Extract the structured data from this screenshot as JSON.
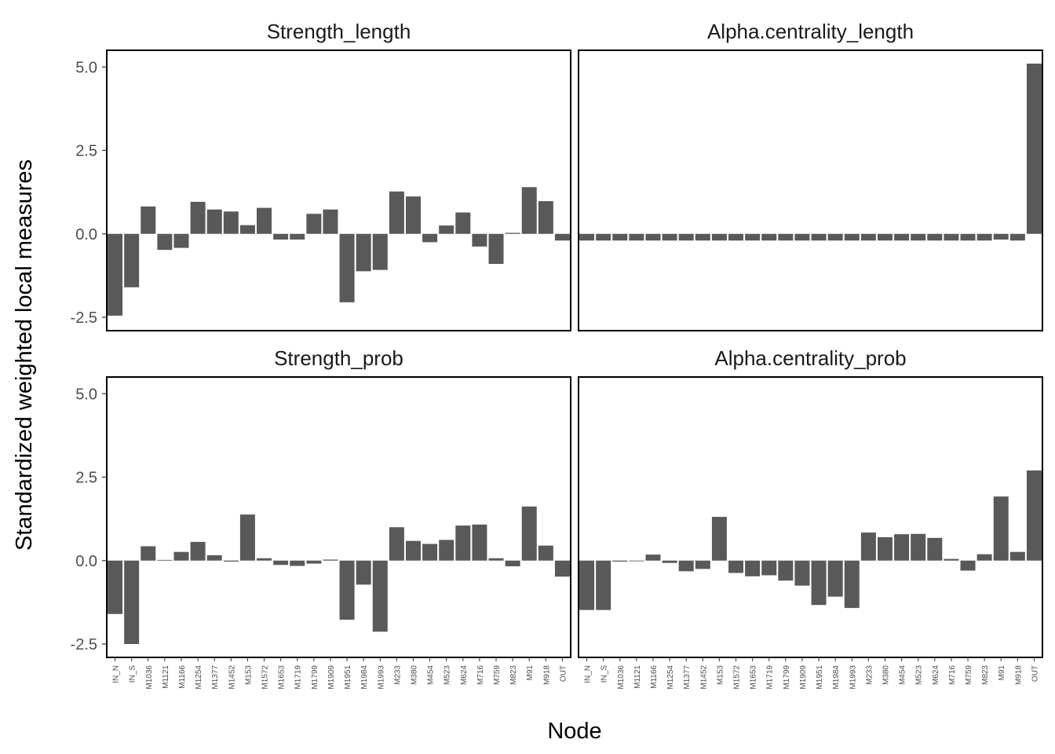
{
  "chart_data": {
    "type": "bar",
    "xlabel": "Node",
    "ylabel": "Standardized weighted local measures",
    "ylim": [
      -2.9,
      5.5
    ],
    "yticks": [
      -2.5,
      0.0,
      2.5,
      5.0
    ],
    "ytick_labels": [
      "-2.5",
      "0.0",
      "2.5",
      "5.0"
    ],
    "grid": false,
    "bar_color": "#595959",
    "categories": [
      "IN_N",
      "IN_S",
      "M1036",
      "M1121",
      "M1166",
      "M1254",
      "M1377",
      "M1452",
      "M153",
      "M1572",
      "M1653",
      "M1719",
      "M1799",
      "M1909",
      "M1951",
      "M1984",
      "M1993",
      "M233",
      "M380",
      "M454",
      "M523",
      "M624",
      "M716",
      "M759",
      "M823",
      "M91",
      "M918",
      "OUT"
    ],
    "series": [
      {
        "name": "Strength_length",
        "values": [
          -2.45,
          -1.6,
          0.82,
          -0.48,
          -0.42,
          0.96,
          0.73,
          0.67,
          0.26,
          0.78,
          -0.17,
          -0.17,
          0.6,
          0.73,
          -2.05,
          -1.12,
          -1.08,
          1.27,
          1.12,
          -0.25,
          0.25,
          0.64,
          -0.38,
          -0.9,
          0.03,
          1.4,
          0.98,
          -0.2
        ]
      },
      {
        "name": "Alpha.centrality_length",
        "values": [
          -0.2,
          -0.2,
          -0.2,
          -0.2,
          -0.2,
          -0.2,
          -0.2,
          -0.2,
          -0.2,
          -0.2,
          -0.2,
          -0.2,
          -0.2,
          -0.2,
          -0.2,
          -0.2,
          -0.2,
          -0.2,
          -0.2,
          -0.2,
          -0.2,
          -0.2,
          -0.2,
          -0.2,
          -0.2,
          -0.17,
          -0.2,
          5.1
        ]
      },
      {
        "name": "Strength_prob",
        "values": [
          -1.6,
          -2.5,
          0.43,
          0.02,
          0.26,
          0.56,
          0.16,
          -0.03,
          1.38,
          0.07,
          -0.13,
          -0.16,
          -0.09,
          0.03,
          -1.77,
          -0.72,
          -2.13,
          1.0,
          0.59,
          0.5,
          0.62,
          1.05,
          1.08,
          0.07,
          -0.17,
          1.62,
          0.45,
          -0.48
        ]
      },
      {
        "name": "Alpha.centrality_prob",
        "values": [
          -1.48,
          -1.48,
          -0.03,
          -0.02,
          0.18,
          -0.07,
          -0.32,
          -0.25,
          1.31,
          -0.37,
          -0.47,
          -0.44,
          -0.6,
          -0.75,
          -1.33,
          -1.08,
          -1.42,
          0.84,
          0.7,
          0.79,
          0.8,
          0.68,
          0.05,
          -0.3,
          0.19,
          1.92,
          0.26,
          2.7
        ]
      }
    ]
  }
}
